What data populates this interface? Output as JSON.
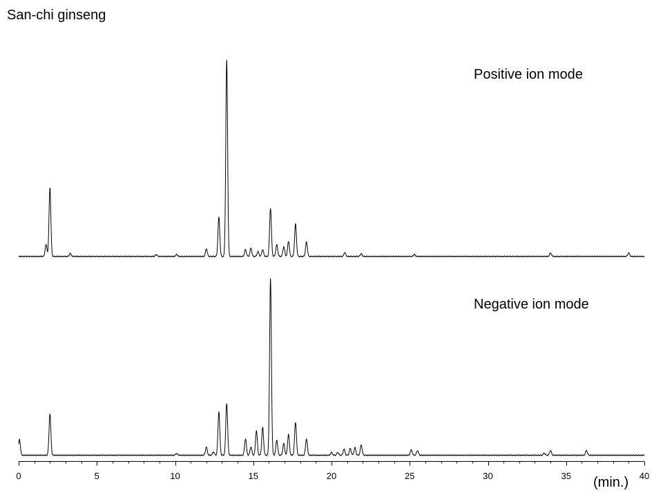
{
  "chart_data": {
    "type": "line",
    "title": "San-chi ginseng",
    "xlabel": "(min.)",
    "xlim": [
      0,
      40
    ],
    "xticks": [
      0,
      5,
      10,
      15,
      20,
      25,
      30,
      35,
      40
    ],
    "grid": false,
    "legend": "none",
    "series": [
      {
        "name": "Positive ion mode",
        "x": [
          1.75,
          2.0,
          3.3,
          8.8,
          10.1,
          12.0,
          12.8,
          13.3,
          14.5,
          14.85,
          15.3,
          15.6,
          16.1,
          16.5,
          16.95,
          17.25,
          17.7,
          18.4,
          20.85,
          21.9,
          25.3,
          34.0,
          39.0
        ],
        "y": [
          6,
          35,
          1.5,
          1,
          1,
          4,
          20,
          100,
          3.5,
          4.2,
          2.5,
          3.5,
          24.6,
          6,
          5,
          7.7,
          16.5,
          7.4,
          2,
          1.4,
          1,
          1.8,
          1.8
        ]
      },
      {
        "name": "Negative ion mode",
        "x": [
          0.05,
          2.0,
          10.1,
          12.0,
          12.45,
          12.8,
          13.3,
          14.5,
          14.85,
          15.2,
          15.6,
          16.1,
          16.5,
          16.95,
          17.25,
          17.7,
          18.4,
          20.0,
          20.4,
          20.8,
          21.2,
          21.5,
          21.9,
          25.1,
          25.5,
          33.6,
          34.0,
          36.3
        ],
        "y": [
          9,
          23.5,
          1,
          4.7,
          2,
          24.7,
          29.4,
          9.4,
          4.7,
          14,
          15.7,
          100,
          8.6,
          6.7,
          11.8,
          18.8,
          9.4,
          1.6,
          1.6,
          3.5,
          3.9,
          4.3,
          5.9,
          3.1,
          2.7,
          1.2,
          2.7,
          2.7
        ]
      }
    ]
  }
}
